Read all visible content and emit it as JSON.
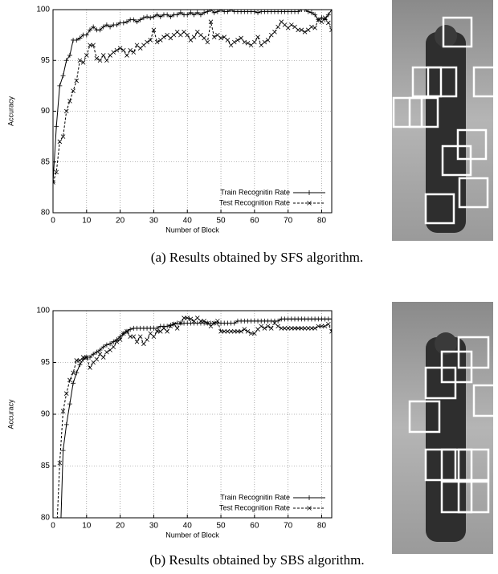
{
  "chart_data": [
    {
      "type": "line",
      "y_label": "Accuracy",
      "x_label": "Number of Block",
      "xlim": [
        0,
        83
      ],
      "ylim": [
        80,
        100
      ],
      "xticks": [
        0,
        10,
        20,
        30,
        40,
        50,
        60,
        70,
        80
      ],
      "yticks": [
        80,
        85,
        90,
        95,
        100
      ],
      "grid": true,
      "legend": "lower right",
      "x": [
        0,
        1,
        2,
        3,
        4,
        5,
        6,
        7,
        8,
        9,
        10,
        11,
        12,
        13,
        14,
        15,
        16,
        17,
        18,
        19,
        20,
        21,
        22,
        23,
        24,
        25,
        26,
        27,
        28,
        29,
        30,
        31,
        32,
        33,
        34,
        35,
        36,
        37,
        38,
        39,
        40,
        41,
        42,
        43,
        44,
        45,
        46,
        47,
        48,
        49,
        50,
        51,
        52,
        53,
        54,
        55,
        56,
        57,
        58,
        59,
        60,
        61,
        62,
        63,
        64,
        65,
        66,
        67,
        68,
        69,
        70,
        71,
        72,
        73,
        74,
        75,
        76,
        77,
        78,
        79,
        80,
        81,
        82,
        83
      ],
      "series": [
        {
          "name": "Train Recognitin Rate",
          "color": "#000000",
          "dashed": false,
          "marker": "plus",
          "values": [
            83,
            88.5,
            92.5,
            93.5,
            95,
            95.5,
            97,
            97,
            97.2,
            97.5,
            97.5,
            98,
            98.3,
            98,
            98,
            98.3,
            98.5,
            98.3,
            98.5,
            98.5,
            98.7,
            98.7,
            98.8,
            99,
            99,
            98.8,
            99,
            99.2,
            99.3,
            99.2,
            99.3,
            99.5,
            99.3,
            99.5,
            99.5,
            99.3,
            99.5,
            99.5,
            99.7,
            99.5,
            99.5,
            99.7,
            99.5,
            99.7,
            99.5,
            99.7,
            99.8,
            100,
            99.7,
            99.8,
            100,
            99.8,
            99.8,
            100,
            99.8,
            99.8,
            99.8,
            99.8,
            99.8,
            99.8,
            99.8,
            99.7,
            99.8,
            99.8,
            99.8,
            99.8,
            99.8,
            99.8,
            99.8,
            99.8,
            99.8,
            99.8,
            99.8,
            99.8,
            100,
            100,
            99.8,
            99.7,
            99.5,
            99,
            99.2,
            99,
            99.5,
            100
          ]
        },
        {
          "name": "Test Recognition Rate",
          "color": "#000000",
          "dashed": true,
          "marker": "cross",
          "values": [
            83,
            84,
            87,
            87.5,
            90,
            91,
            92,
            93,
            95,
            94.8,
            95.5,
            96.5,
            96.5,
            95.2,
            95,
            95.5,
            95,
            95.5,
            95.8,
            96,
            96.2,
            96,
            95.5,
            96,
            95.8,
            96.5,
            96.2,
            96.5,
            96.8,
            97,
            98,
            96.8,
            97,
            97.3,
            97.5,
            97.2,
            97.5,
            97.8,
            97.5,
            97.8,
            97.5,
            97,
            97.3,
            97.8,
            97.5,
            97.2,
            96.8,
            98.8,
            97.3,
            97.5,
            97.2,
            97.3,
            97,
            96.5,
            96.8,
            97,
            97.2,
            96.8,
            96.7,
            96.5,
            96.8,
            97.3,
            96.5,
            96.8,
            97,
            97.5,
            97.8,
            98.3,
            98.8,
            98.5,
            98.2,
            98.5,
            98.3,
            98,
            98,
            97.8,
            98,
            98.3,
            98.2,
            99,
            98.8,
            99.2,
            98.7,
            98
          ]
        }
      ]
    },
    {
      "type": "line",
      "y_label": "Accuracy",
      "x_label": "Number of Block",
      "xlim": [
        0,
        83
      ],
      "ylim": [
        80,
        100
      ],
      "xticks": [
        0,
        10,
        20,
        30,
        40,
        50,
        60,
        70,
        80
      ],
      "yticks": [
        80,
        85,
        90,
        95,
        100
      ],
      "grid": true,
      "legend": "lower right",
      "x": [
        0,
        1,
        2,
        3,
        4,
        5,
        6,
        7,
        8,
        9,
        10,
        11,
        12,
        13,
        14,
        15,
        16,
        17,
        18,
        19,
        20,
        21,
        22,
        23,
        24,
        25,
        26,
        27,
        28,
        29,
        30,
        31,
        32,
        33,
        34,
        35,
        36,
        37,
        38,
        39,
        40,
        41,
        42,
        43,
        44,
        45,
        46,
        47,
        48,
        49,
        50,
        51,
        52,
        53,
        54,
        55,
        56,
        57,
        58,
        59,
        60,
        61,
        62,
        63,
        64,
        65,
        66,
        67,
        68,
        69,
        70,
        71,
        72,
        73,
        74,
        75,
        76,
        77,
        78,
        79,
        80,
        81,
        82,
        83
      ],
      "series": [
        {
          "name": "Train Recognitin Rate",
          "color": "#000000",
          "dashed": false,
          "marker": "plus",
          "values": [
            null,
            null,
            76,
            86.5,
            89,
            91,
            93,
            94,
            94.8,
            95.3,
            95.5,
            95.5,
            95.8,
            96,
            96.2,
            96.5,
            96.7,
            96.8,
            97,
            97.2,
            97.5,
            97.8,
            98,
            98.2,
            98.3,
            98.3,
            98.3,
            98.3,
            98.3,
            98.3,
            98.3,
            98.3,
            98.5,
            98.5,
            98.5,
            98.6,
            98.7,
            98.8,
            98.8,
            98.8,
            98.8,
            98.8,
            98.8,
            98.8,
            98.8,
            98.8,
            98.8,
            98.8,
            98.8,
            98.8,
            98.8,
            98.8,
            98.8,
            98.8,
            98.8,
            99,
            99,
            99,
            99,
            99,
            99,
            99,
            99,
            99,
            99,
            99,
            99,
            99,
            99.2,
            99.2,
            99.2,
            99.2,
            99.2,
            99.2,
            99.2,
            99.2,
            99.2,
            99.2,
            99.2,
            99.2,
            99.2,
            99.2,
            99.2,
            99.2
          ]
        },
        {
          "name": "Test Recognition Rate",
          "color": "#000000",
          "dashed": true,
          "marker": "cross",
          "values": [
            null,
            78,
            85.3,
            90.3,
            92,
            93.3,
            94,
            95.2,
            95.2,
            95.5,
            95.5,
            94.5,
            95,
            95.3,
            95.8,
            95.5,
            96,
            96.2,
            96.5,
            97,
            97.2,
            97.8,
            98,
            97.5,
            97.5,
            97,
            97.5,
            96.8,
            97.2,
            97.8,
            97.5,
            98,
            98,
            98.3,
            98,
            98.5,
            98.7,
            98.3,
            98.8,
            99.3,
            99.3,
            99.2,
            99,
            99.3,
            99,
            99,
            98.8,
            98.5,
            98.8,
            99,
            98,
            98,
            98,
            98,
            98,
            98,
            98,
            98.2,
            98,
            97.8,
            97.8,
            98.2,
            98.5,
            98.3,
            98.5,
            98.3,
            98.8,
            98.5,
            98.3,
            98.3,
            98.3,
            98.3,
            98.3,
            98.3,
            98.3,
            98.3,
            98.3,
            98.3,
            98.3,
            98.5,
            98.5,
            98.5,
            98.7,
            98
          ]
        }
      ]
    }
  ],
  "captions": [
    "(a) Results obtained by SFS algorithm.",
    "(b) Results obtained by SBS algorithm."
  ]
}
